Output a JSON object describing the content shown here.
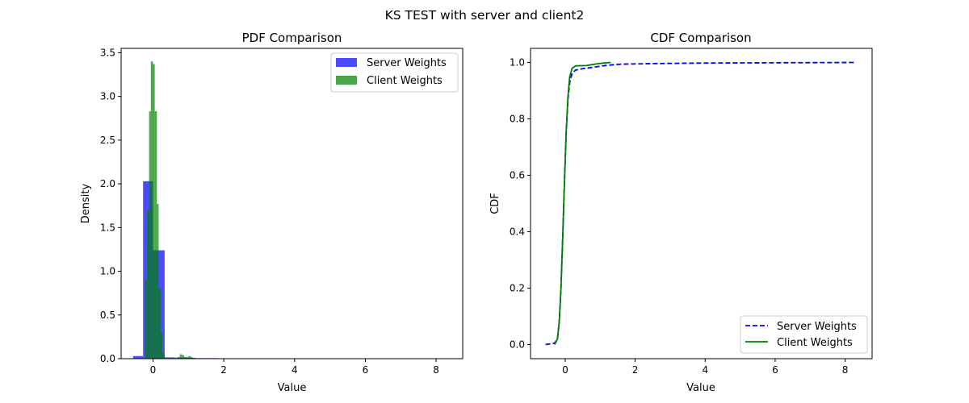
{
  "figure": {
    "suptitle": "KS TEST with server and client2"
  },
  "chart_data": [
    {
      "type": "bar",
      "subtype": "histogram",
      "title": "PDF Comparison",
      "xlabel": "Value",
      "ylabel": "Density",
      "xlim": [
        -0.9,
        8.75
      ],
      "ylim": [
        0,
        3.55
      ],
      "xticks": [
        0,
        2,
        4,
        6,
        8
      ],
      "yticks": [
        0.0,
        0.5,
        1.0,
        1.5,
        2.0,
        2.5,
        3.0,
        3.5
      ],
      "legend_position": "upper right",
      "series": [
        {
          "name": "Server Weights",
          "color": "#0000ff",
          "opacity": 0.7,
          "bins": [
            {
              "x0": -0.56,
              "x1": -0.28,
              "density": 0.03
            },
            {
              "x0": -0.28,
              "x1": 0.0,
              "density": 2.03
            },
            {
              "x0": 0.0,
              "x1": 0.33,
              "density": 1.24
            },
            {
              "x0": 0.33,
              "x1": 0.6,
              "density": 0.015
            },
            {
              "x0": 0.6,
              "x1": 0.9,
              "density": 0.012
            },
            {
              "x0": 0.9,
              "x1": 1.2,
              "density": 0.01
            },
            {
              "x0": 1.2,
              "x1": 1.8,
              "density": 0.006
            },
            {
              "x0": 1.8,
              "x1": 8.3,
              "density": 0.001
            }
          ]
        },
        {
          "name": "Client Weights",
          "color": "#008000",
          "opacity": 0.7,
          "bins": [
            {
              "x0": -0.22,
              "x1": -0.17,
              "density": 0.9
            },
            {
              "x0": -0.17,
              "x1": -0.11,
              "density": 1.7
            },
            {
              "x0": -0.11,
              "x1": -0.06,
              "density": 2.83
            },
            {
              "x0": -0.06,
              "x1": 0.0,
              "density": 3.4
            },
            {
              "x0": 0.0,
              "x1": 0.05,
              "density": 3.37
            },
            {
              "x0": 0.05,
              "x1": 0.11,
              "density": 2.83
            },
            {
              "x0": 0.11,
              "x1": 0.16,
              "density": 1.77
            },
            {
              "x0": 0.16,
              "x1": 0.22,
              "density": 0.8
            },
            {
              "x0": 0.22,
              "x1": 0.27,
              "density": 0.3
            },
            {
              "x0": 0.27,
              "x1": 0.33,
              "density": 0.06
            },
            {
              "x0": 0.7,
              "x1": 0.76,
              "density": 0.02
            },
            {
              "x0": 0.76,
              "x1": 0.82,
              "density": 0.05
            },
            {
              "x0": 0.82,
              "x1": 0.88,
              "density": 0.04
            },
            {
              "x0": 0.88,
              "x1": 0.94,
              "density": 0.02
            },
            {
              "x0": 0.94,
              "x1": 1.0,
              "density": 0.02
            },
            {
              "x0": 1.0,
              "x1": 1.06,
              "density": 0.03
            },
            {
              "x0": 1.06,
              "x1": 1.12,
              "density": 0.02
            },
            {
              "x0": 1.12,
              "x1": 1.2,
              "density": 0.01
            }
          ]
        }
      ]
    },
    {
      "type": "line",
      "title": "CDF Comparison",
      "xlabel": "Value",
      "ylabel": "CDF",
      "xlim": [
        -0.99,
        8.77
      ],
      "ylim": [
        -0.05,
        1.05
      ],
      "xticks": [
        0,
        2,
        4,
        6,
        8
      ],
      "yticks": [
        0.0,
        0.2,
        0.4,
        0.6,
        0.8,
        1.0
      ],
      "legend_position": "lower right",
      "series": [
        {
          "name": "Server Weights",
          "color": "#0000ff",
          "linestyle": "dashed",
          "points": [
            [
              -0.56,
              0.0
            ],
            [
              -0.3,
              0.005
            ],
            [
              -0.22,
              0.02
            ],
            [
              -0.17,
              0.08
            ],
            [
              -0.12,
              0.2
            ],
            [
              -0.07,
              0.38
            ],
            [
              -0.02,
              0.58
            ],
            [
              0.03,
              0.75
            ],
            [
              0.08,
              0.87
            ],
            [
              0.13,
              0.93
            ],
            [
              0.2,
              0.962
            ],
            [
              0.3,
              0.973
            ],
            [
              0.5,
              0.978
            ],
            [
              0.8,
              0.983
            ],
            [
              1.2,
              0.99
            ],
            [
              1.6,
              0.994
            ],
            [
              2.5,
              0.996
            ],
            [
              4.0,
              0.998
            ],
            [
              6.0,
              0.999
            ],
            [
              8.3,
              1.0
            ]
          ]
        },
        {
          "name": "Client Weights",
          "color": "#008000",
          "linestyle": "solid",
          "points": [
            [
              -0.3,
              0.0
            ],
            [
              -0.22,
              0.02
            ],
            [
              -0.17,
              0.08
            ],
            [
              -0.12,
              0.2
            ],
            [
              -0.07,
              0.38
            ],
            [
              -0.02,
              0.58
            ],
            [
              0.03,
              0.76
            ],
            [
              0.08,
              0.88
            ],
            [
              0.13,
              0.95
            ],
            [
              0.2,
              0.98
            ],
            [
              0.3,
              0.988
            ],
            [
              0.6,
              0.989
            ],
            [
              0.75,
              0.992
            ],
            [
              0.9,
              0.995
            ],
            [
              1.1,
              0.998
            ],
            [
              1.3,
              1.0
            ]
          ]
        }
      ]
    }
  ]
}
